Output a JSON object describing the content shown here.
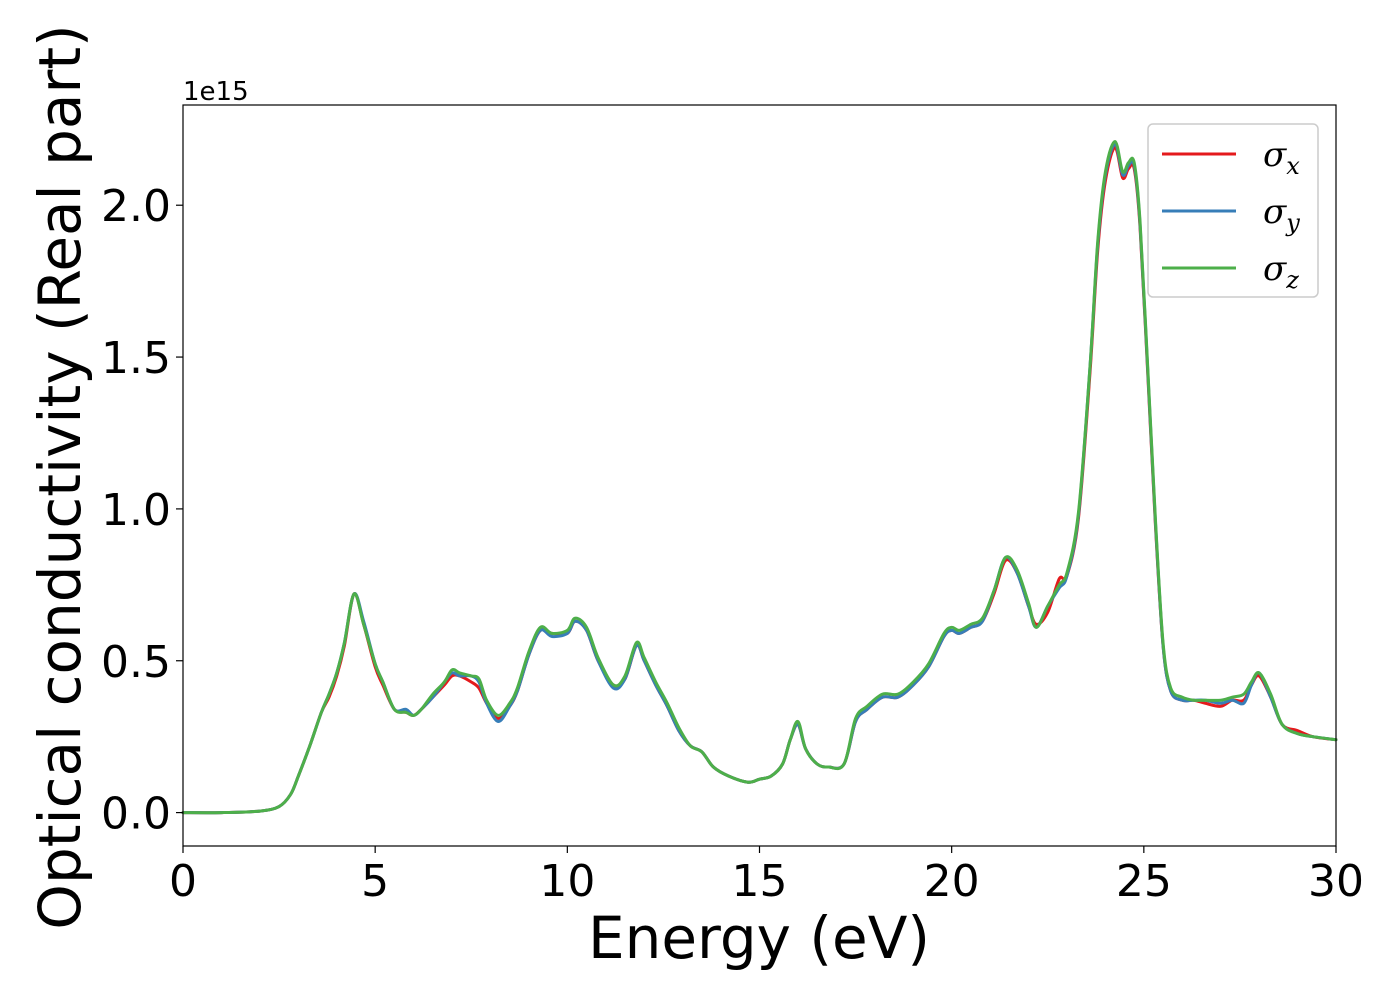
{
  "chart_data": {
    "type": "line",
    "xlabel": "Energy (eV)",
    "ylabel": "Optical conductivity (Real part)",
    "offset_text": "1e15",
    "xlim": [
      0,
      30
    ],
    "ylim": [
      -0.11,
      2.33
    ],
    "x_ticks": [
      0,
      5,
      10,
      15,
      20,
      25,
      30
    ],
    "x_tick_labels": [
      "0",
      "5",
      "10",
      "15",
      "20",
      "25",
      "30"
    ],
    "y_ticks": [
      0.0,
      0.5,
      1.0,
      1.5,
      2.0
    ],
    "y_tick_labels": [
      "0.0",
      "0.5",
      "1.0",
      "1.5",
      "2.0"
    ],
    "grid": false,
    "legend_position": "top-right",
    "series": [
      {
        "name": "σx",
        "legend_main": "σ",
        "legend_sub": "x",
        "color": "#e41a1c",
        "x": [
          0,
          1,
          2,
          2.5,
          2.8,
          3,
          3.3,
          3.6,
          3.8,
          4,
          4.2,
          4.45,
          4.7,
          5,
          5.2,
          5.5,
          5.8,
          6,
          6.2,
          6.5,
          6.8,
          7,
          7.2,
          7.5,
          7.7,
          7.9,
          8.2,
          8.5,
          8.7,
          9,
          9.3,
          9.6,
          10,
          10.2,
          10.5,
          10.8,
          11.2,
          11.5,
          11.8,
          12,
          12.3,
          12.6,
          12.9,
          13.2,
          13.5,
          13.8,
          14.2,
          14.7,
          15,
          15.3,
          15.6,
          15.8,
          16,
          16.2,
          16.5,
          16.8,
          17.2,
          17.5,
          17.8,
          18.2,
          18.6,
          19,
          19.4,
          19.8,
          20,
          20.2,
          20.5,
          20.8,
          21.1,
          21.4,
          21.7,
          22,
          22.2,
          22.5,
          22.8,
          23,
          23.3,
          23.6,
          23.8,
          24,
          24.25,
          24.45,
          24.6,
          24.75,
          24.9,
          25.1,
          25.3,
          25.5,
          25.7,
          26,
          26.3,
          26.6,
          27,
          27.3,
          27.6,
          27.8,
          28,
          28.3,
          28.6,
          29,
          29.4,
          30
        ],
        "y": [
          0,
          0,
          0.005,
          0.02,
          0.06,
          0.12,
          0.22,
          0.33,
          0.38,
          0.45,
          0.55,
          0.72,
          0.62,
          0.48,
          0.42,
          0.34,
          0.33,
          0.32,
          0.34,
          0.38,
          0.42,
          0.45,
          0.45,
          0.43,
          0.41,
          0.36,
          0.31,
          0.35,
          0.4,
          0.52,
          0.6,
          0.59,
          0.59,
          0.63,
          0.6,
          0.5,
          0.42,
          0.44,
          0.55,
          0.5,
          0.42,
          0.35,
          0.27,
          0.22,
          0.2,
          0.15,
          0.12,
          0.1,
          0.11,
          0.12,
          0.16,
          0.24,
          0.29,
          0.21,
          0.16,
          0.15,
          0.16,
          0.3,
          0.34,
          0.38,
          0.38,
          0.42,
          0.48,
          0.58,
          0.6,
          0.59,
          0.61,
          0.63,
          0.72,
          0.83,
          0.79,
          0.68,
          0.62,
          0.66,
          0.77,
          0.78,
          0.97,
          1.45,
          1.85,
          2.08,
          2.19,
          2.09,
          2.12,
          2.12,
          1.93,
          1.45,
          0.95,
          0.55,
          0.4,
          0.37,
          0.37,
          0.36,
          0.35,
          0.37,
          0.37,
          0.42,
          0.45,
          0.38,
          0.29,
          0.27,
          0.25,
          0.24
        ]
      },
      {
        "name": "σy",
        "legend_main": "σ",
        "legend_sub": "y",
        "color": "#377eb8",
        "x": [
          0,
          1,
          2,
          2.5,
          2.8,
          3,
          3.3,
          3.6,
          3.8,
          4,
          4.2,
          4.45,
          4.7,
          5,
          5.2,
          5.5,
          5.8,
          6,
          6.2,
          6.5,
          6.8,
          7,
          7.2,
          7.5,
          7.7,
          7.9,
          8.2,
          8.5,
          8.7,
          9,
          9.3,
          9.6,
          10,
          10.2,
          10.5,
          10.8,
          11.2,
          11.5,
          11.8,
          12,
          12.3,
          12.6,
          12.9,
          13.2,
          13.5,
          13.8,
          14.2,
          14.7,
          15,
          15.3,
          15.6,
          15.8,
          16,
          16.2,
          16.5,
          16.8,
          17.2,
          17.5,
          17.8,
          18.2,
          18.6,
          19,
          19.4,
          19.8,
          20,
          20.2,
          20.5,
          20.8,
          21.1,
          21.4,
          21.7,
          22,
          22.2,
          22.5,
          22.8,
          23,
          23.3,
          23.6,
          23.8,
          24,
          24.25,
          24.45,
          24.6,
          24.75,
          24.9,
          25.1,
          25.3,
          25.5,
          25.7,
          26,
          26.3,
          26.6,
          27,
          27.3,
          27.6,
          27.8,
          28,
          28.3,
          28.6,
          29,
          29.4,
          30
        ],
        "y": [
          0,
          0,
          0.005,
          0.02,
          0.06,
          0.12,
          0.22,
          0.33,
          0.39,
          0.46,
          0.56,
          0.72,
          0.63,
          0.49,
          0.43,
          0.34,
          0.34,
          0.32,
          0.34,
          0.38,
          0.43,
          0.46,
          0.45,
          0.45,
          0.43,
          0.36,
          0.3,
          0.35,
          0.4,
          0.52,
          0.6,
          0.58,
          0.59,
          0.63,
          0.6,
          0.5,
          0.41,
          0.44,
          0.55,
          0.5,
          0.42,
          0.35,
          0.27,
          0.22,
          0.2,
          0.15,
          0.12,
          0.1,
          0.11,
          0.12,
          0.16,
          0.24,
          0.29,
          0.21,
          0.16,
          0.15,
          0.16,
          0.3,
          0.34,
          0.38,
          0.38,
          0.42,
          0.48,
          0.58,
          0.6,
          0.59,
          0.61,
          0.63,
          0.73,
          0.84,
          0.79,
          0.68,
          0.61,
          0.68,
          0.74,
          0.78,
          0.98,
          1.47,
          1.87,
          2.1,
          2.2,
          2.1,
          2.13,
          2.13,
          1.94,
          1.46,
          0.96,
          0.55,
          0.4,
          0.37,
          0.37,
          0.37,
          0.36,
          0.37,
          0.36,
          0.42,
          0.46,
          0.38,
          0.29,
          0.26,
          0.25,
          0.24
        ]
      },
      {
        "name": "σz",
        "legend_main": "σ",
        "legend_sub": "z",
        "color": "#4daf4a",
        "x": [
          0,
          1,
          2,
          2.5,
          2.8,
          3,
          3.3,
          3.6,
          3.8,
          4,
          4.2,
          4.45,
          4.7,
          5,
          5.2,
          5.5,
          5.8,
          6,
          6.2,
          6.5,
          6.8,
          7,
          7.2,
          7.5,
          7.7,
          7.9,
          8.2,
          8.5,
          8.7,
          9,
          9.3,
          9.6,
          10,
          10.2,
          10.5,
          10.8,
          11.2,
          11.5,
          11.8,
          12,
          12.3,
          12.6,
          12.9,
          13.2,
          13.5,
          13.8,
          14.2,
          14.7,
          15,
          15.3,
          15.6,
          15.8,
          16,
          16.2,
          16.5,
          16.8,
          17.2,
          17.5,
          17.8,
          18.2,
          18.6,
          19,
          19.4,
          19.8,
          20,
          20.2,
          20.5,
          20.8,
          21.1,
          21.4,
          21.7,
          22,
          22.2,
          22.5,
          22.8,
          23,
          23.3,
          23.6,
          23.8,
          24,
          24.25,
          24.45,
          24.6,
          24.75,
          24.9,
          25.1,
          25.3,
          25.5,
          25.7,
          26,
          26.3,
          26.6,
          27,
          27.3,
          27.6,
          27.8,
          28,
          28.3,
          28.6,
          29,
          29.4,
          30
        ],
        "y": [
          0,
          0,
          0.005,
          0.02,
          0.06,
          0.12,
          0.22,
          0.33,
          0.39,
          0.46,
          0.56,
          0.72,
          0.62,
          0.49,
          0.43,
          0.34,
          0.33,
          0.32,
          0.34,
          0.39,
          0.43,
          0.47,
          0.46,
          0.45,
          0.44,
          0.37,
          0.32,
          0.36,
          0.41,
          0.53,
          0.61,
          0.59,
          0.6,
          0.64,
          0.61,
          0.51,
          0.42,
          0.45,
          0.56,
          0.51,
          0.43,
          0.36,
          0.28,
          0.22,
          0.2,
          0.15,
          0.12,
          0.1,
          0.11,
          0.12,
          0.16,
          0.24,
          0.3,
          0.21,
          0.16,
          0.15,
          0.16,
          0.31,
          0.35,
          0.39,
          0.39,
          0.43,
          0.49,
          0.59,
          0.61,
          0.6,
          0.62,
          0.64,
          0.73,
          0.84,
          0.8,
          0.69,
          0.61,
          0.68,
          0.75,
          0.79,
          0.99,
          1.47,
          1.88,
          2.11,
          2.21,
          2.11,
          2.14,
          2.14,
          1.95,
          1.47,
          0.97,
          0.56,
          0.41,
          0.38,
          0.37,
          0.37,
          0.37,
          0.38,
          0.39,
          0.43,
          0.46,
          0.39,
          0.29,
          0.26,
          0.25,
          0.24
        ]
      }
    ]
  }
}
